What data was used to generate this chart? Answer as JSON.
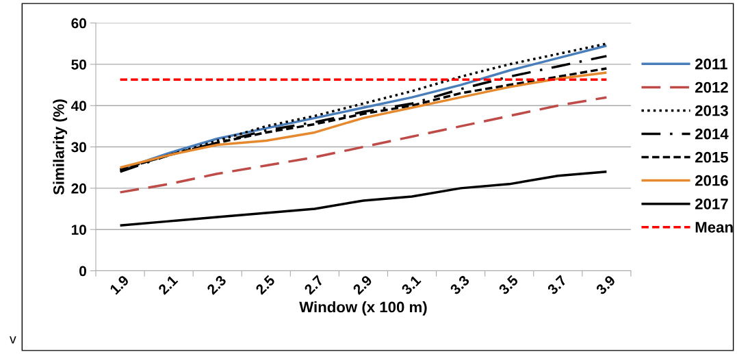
{
  "chart_data": {
    "type": "line",
    "xlabel": "Window (x 100 m)",
    "ylabel": "Similarity (%)",
    "categories": [
      "1.9",
      "2.1",
      "2.3",
      "2.5",
      "2.7",
      "2.9",
      "3.1",
      "3.3",
      "3.5",
      "3.7",
      "3.9"
    ],
    "series": [
      {
        "name": "2011",
        "color": "#4a7ebb",
        "line_style": "solid",
        "values": [
          24.5,
          28.5,
          32,
          34.5,
          37,
          39.5,
          42,
          45,
          48.5,
          51.5,
          54.5
        ]
      },
      {
        "name": "2012",
        "color": "#be4b48",
        "line_style": "longdash",
        "values": [
          19,
          21,
          23.5,
          25.5,
          27.5,
          30,
          32.5,
          35,
          37.5,
          40,
          42
        ]
      },
      {
        "name": "2013",
        "color": "#000000",
        "line_style": "dotted",
        "values": [
          24.5,
          28,
          31.5,
          35,
          37.5,
          40.5,
          43.5,
          47,
          50,
          52.5,
          55
        ]
      },
      {
        "name": "2014",
        "color": "#000000",
        "line_style": "dashdot",
        "values": [
          24,
          28,
          31,
          34,
          36,
          38.5,
          40.5,
          44,
          47,
          49.5,
          52
        ]
      },
      {
        "name": "2015",
        "color": "#000000",
        "line_style": "dashed",
        "values": [
          24.5,
          28,
          31,
          33.5,
          35.5,
          38,
          40,
          43,
          45,
          47,
          49
        ]
      },
      {
        "name": "2016",
        "color": "#e6892e",
        "line_style": "solid",
        "values": [
          25,
          28,
          30.5,
          31.5,
          33.5,
          37,
          39.5,
          42,
          44.5,
          46.5,
          48
        ]
      },
      {
        "name": "2017",
        "color": "#000000",
        "line_style": "solid",
        "values": [
          11,
          12,
          13,
          14,
          15,
          17,
          18,
          20,
          21,
          23,
          24
        ]
      },
      {
        "name": "Mean",
        "color": "#ff0000",
        "line_style": "dashed",
        "values": [
          46.3,
          46.3,
          46.3,
          46.3,
          46.3,
          46.3,
          46.3,
          46.3,
          46.3,
          46.3,
          46.3
        ]
      }
    ],
    "ylim": [
      0,
      60
    ],
    "yticks": [
      0,
      10,
      20,
      30,
      40,
      50,
      60
    ],
    "grid": "y",
    "legend": "right",
    "marker": "none",
    "annotations": [
      "v"
    ]
  }
}
